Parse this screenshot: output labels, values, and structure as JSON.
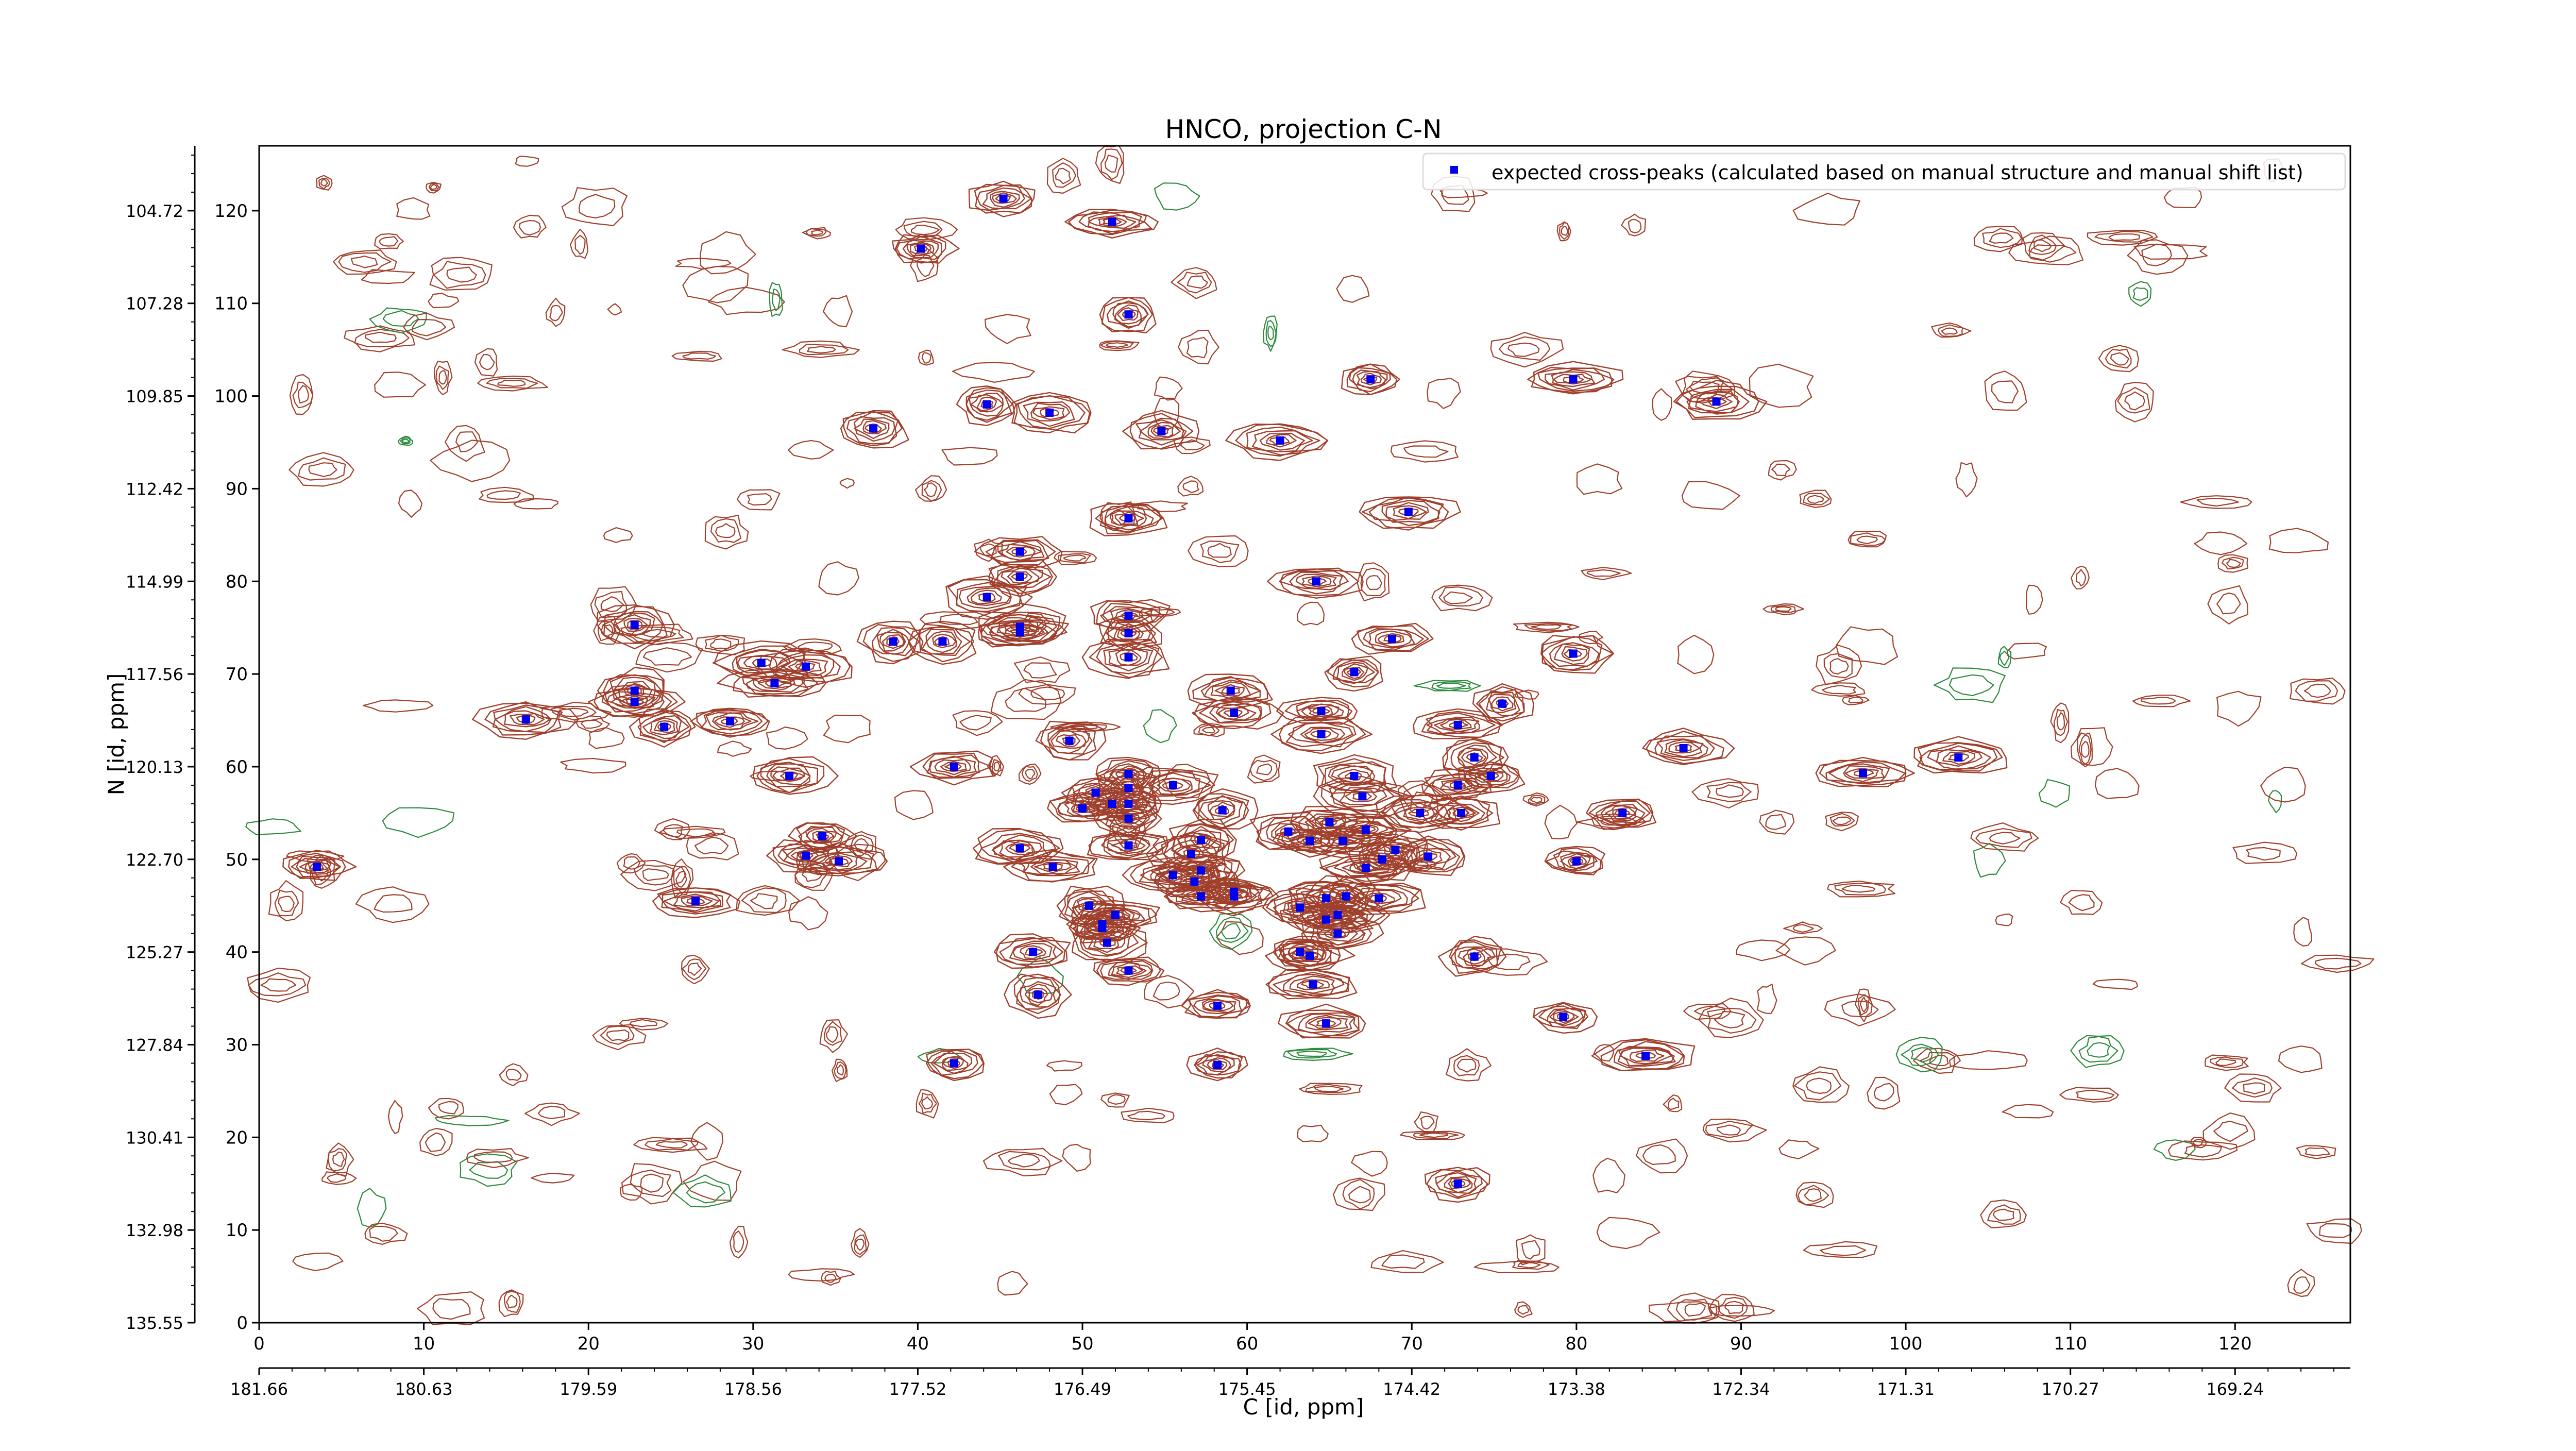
{
  "chart_data": {
    "type": "scatter",
    "title": "HNCO, projection C-N",
    "xlabel": "C [id, ppm]",
    "ylabel": "N [id, ppm]",
    "x_index_ticks": [
      "0",
      "10",
      "20",
      "30",
      "40",
      "50",
      "60",
      "70",
      "80",
      "90",
      "100",
      "110",
      "120"
    ],
    "x_ppm_ticks": [
      "181.66",
      "180.63",
      "179.59",
      "178.56",
      "177.52",
      "176.49",
      "175.45",
      "174.42",
      "173.38",
      "172.34",
      "171.31",
      "170.27",
      "169.24"
    ],
    "y_index_ticks": [
      "0",
      "10",
      "20",
      "30",
      "40",
      "50",
      "60",
      "70",
      "80",
      "90",
      "100",
      "110",
      "120"
    ],
    "y_ppm_ticks": [
      "135.55",
      "132.98",
      "130.41",
      "127.84",
      "125.27",
      "122.70",
      "120.13",
      "117.56",
      "114.99",
      "112.42",
      "109.85",
      "107.28",
      "104.72"
    ],
    "xlim": [
      0,
      127
    ],
    "ylim": [
      0,
      127
    ],
    "grid": false,
    "legend_position": "top-right",
    "legend": "expected cross-peaks (calculated based on manual structure and manual shift list)",
    "colors": {
      "peaks": "#0000ee",
      "contour_positive": "#a0402c",
      "contour_negative": "#2e8b3e"
    },
    "series": [
      {
        "name": "expected cross-peaks (calculated based on manual structure and manual shift list)",
        "points": [
          [
            3.5,
            49.2
          ],
          [
            16.2,
            65.1
          ],
          [
            22.8,
            75.3
          ],
          [
            22.8,
            68.2
          ],
          [
            22.8,
            67.0
          ],
          [
            24.6,
            64.3
          ],
          [
            26.5,
            45.5
          ],
          [
            28.6,
            64.9
          ],
          [
            30.5,
            71.2
          ],
          [
            31.3,
            69.0
          ],
          [
            32.2,
            59.0
          ],
          [
            33.2,
            70.8
          ],
          [
            33.2,
            50.4
          ],
          [
            34.2,
            52.5
          ],
          [
            35.2,
            49.8
          ],
          [
            37.3,
            96.5
          ],
          [
            38.5,
            73.5
          ],
          [
            40.2,
            115.9
          ],
          [
            41.5,
            73.5
          ],
          [
            42.2,
            60.0
          ],
          [
            42.2,
            28.0
          ],
          [
            44.2,
            99.1
          ],
          [
            44.2,
            78.3
          ],
          [
            45.2,
            121.3
          ],
          [
            46.2,
            83.2
          ],
          [
            46.2,
            80.5
          ],
          [
            46.2,
            75.1
          ],
          [
            46.2,
            74.5
          ],
          [
            46.2,
            51.2
          ],
          [
            47.0,
            40.0
          ],
          [
            47.3,
            35.4
          ],
          [
            48.0,
            98.2
          ],
          [
            48.2,
            49.2
          ],
          [
            49.2,
            62.8
          ],
          [
            50.0,
            55.5
          ],
          [
            50.4,
            45.0
          ],
          [
            50.8,
            57.2
          ],
          [
            51.2,
            43.0
          ],
          [
            51.2,
            42.6
          ],
          [
            51.5,
            41.0
          ],
          [
            51.8,
            118.8
          ],
          [
            51.8,
            56.0
          ],
          [
            52.0,
            44.0
          ],
          [
            52.8,
            108.8
          ],
          [
            52.8,
            86.8
          ],
          [
            52.8,
            71.8
          ],
          [
            52.8,
            38.0
          ],
          [
            52.8,
            76.3
          ],
          [
            52.8,
            74.4
          ],
          [
            52.8,
            59.2
          ],
          [
            52.8,
            57.7
          ],
          [
            52.8,
            56.0
          ],
          [
            52.8,
            54.4
          ],
          [
            52.8,
            51.5
          ],
          [
            54.8,
            96.2
          ],
          [
            55.5,
            48.3
          ],
          [
            55.5,
            58.0
          ],
          [
            56.6,
            50.6
          ],
          [
            56.8,
            47.6
          ],
          [
            57.2,
            52.1
          ],
          [
            57.2,
            46.0
          ],
          [
            57.2,
            48.8
          ],
          [
            58.2,
            34.2
          ],
          [
            58.2,
            27.8
          ],
          [
            58.5,
            55.3
          ],
          [
            59.0,
            68.2
          ],
          [
            59.2,
            65.8
          ],
          [
            59.2,
            46.0
          ],
          [
            59.2,
            46.5
          ],
          [
            62.0,
            95.2
          ],
          [
            62.5,
            53.0
          ],
          [
            63.2,
            40.0
          ],
          [
            63.2,
            44.8
          ],
          [
            63.8,
            52.0
          ],
          [
            63.8,
            39.6
          ],
          [
            64.0,
            36.5
          ],
          [
            64.2,
            80.0
          ],
          [
            64.5,
            63.5
          ],
          [
            64.5,
            66.0
          ],
          [
            64.8,
            45.8
          ],
          [
            64.8,
            43.5
          ],
          [
            64.8,
            32.3
          ],
          [
            65.0,
            54.0
          ],
          [
            65.5,
            44.0
          ],
          [
            65.5,
            42.0
          ],
          [
            65.8,
            52.0
          ],
          [
            66.0,
            46.0
          ],
          [
            66.5,
            70.2
          ],
          [
            66.5,
            59.0
          ],
          [
            67.0,
            56.8
          ],
          [
            67.2,
            53.2
          ],
          [
            67.2,
            49.1
          ],
          [
            67.5,
            101.8
          ],
          [
            68.0,
            45.8
          ],
          [
            68.2,
            50.0
          ],
          [
            68.8,
            73.8
          ],
          [
            69.0,
            51.0
          ],
          [
            69.8,
            87.5
          ],
          [
            70.5,
            55.0
          ],
          [
            71.0,
            50.3
          ],
          [
            72.8,
            64.5
          ],
          [
            72.8,
            58.0
          ],
          [
            72.8,
            15.0
          ],
          [
            73.0,
            55.0
          ],
          [
            73.8,
            61.0
          ],
          [
            73.8,
            39.5
          ],
          [
            74.8,
            59.0
          ],
          [
            75.5,
            66.8
          ],
          [
            79.2,
            33.0
          ],
          [
            79.8,
            101.8
          ],
          [
            79.8,
            72.2
          ],
          [
            80.0,
            49.8
          ],
          [
            82.8,
            55.0
          ],
          [
            84.2,
            28.8
          ],
          [
            86.5,
            62.0
          ],
          [
            88.5,
            99.4
          ],
          [
            97.4,
            59.3
          ],
          [
            103.2,
            61.0
          ]
        ]
      }
    ]
  }
}
